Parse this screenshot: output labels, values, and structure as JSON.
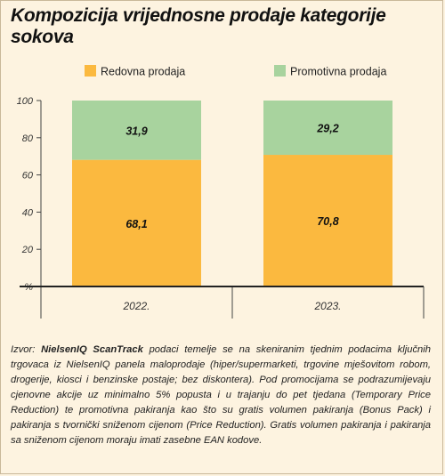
{
  "title": "Kompozicija vrijednosne prodaje kategorije sokova",
  "source": {
    "prefix": "Izvor: ",
    "brand": "NielsenIQ ScanTrack",
    "text": " podaci temelje se na skeniranim tjednim podacima ključnih trgovaca iz NielsenIQ panela maloprodaje (hiper/supermarketi, trgovine mješovitom robom, drogerije, kiosci i benzinske postaje; bez diskontera). Pod promocijama se podrazumijevaju cjenovne akcije uz minimalno 5% popusta i u trajanju do pet tjedana (Temporary Price Reduction) te promotivna pakiranja kao što su gratis volumen pakiranja (Bonus Pack) i pakiranja s tvornički sniženom cijenom (Price Reduction). Gratis volumen pakiranja i pakiranja sa sniženom cijenom moraju imati zasebne EAN kodove."
  },
  "chart_data": {
    "type": "bar",
    "stacked": true,
    "categories": [
      "2022.",
      "2023."
    ],
    "series": [
      {
        "name": "Redovna prodaja",
        "values": [
          68.1,
          70.8
        ],
        "labels": [
          "68,1",
          "70,8"
        ],
        "color": "#fbb93f"
      },
      {
        "name": "Promotivna prodaja",
        "values": [
          31.9,
          29.2
        ],
        "labels": [
          "31,9",
          "29,2"
        ],
        "color": "#a8d39e"
      }
    ],
    "ylim": [
      0,
      100
    ],
    "yticks": [
      0,
      20,
      40,
      60,
      80,
      100
    ],
    "ytick_labels": [
      "%",
      "20",
      "40",
      "60",
      "80",
      "100"
    ],
    "legend": "top",
    "grid": false
  }
}
